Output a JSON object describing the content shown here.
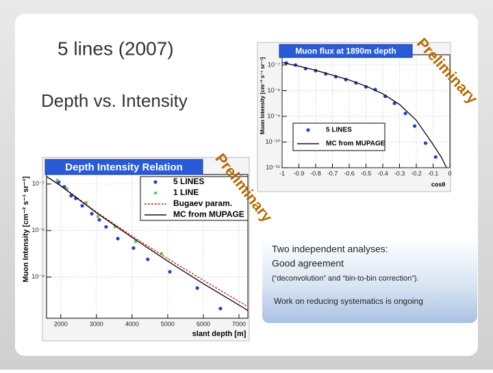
{
  "slide": {
    "title": "5 lines (2007)",
    "subtitle": "Depth vs. Intensity",
    "watermarks": [
      "Preliminary",
      "Preliminary"
    ],
    "textbox": [
      "Two independent analyses:",
      "Good agreement",
      "(“deconvolution” and “bin-to-bin correction”).",
      "Work on reducing systematics is ongoing"
    ]
  },
  "chart_data": [
    {
      "type": "scatter",
      "title": "Depth Intensity Relation",
      "x_label": "slant depth [m]",
      "y_label": "Muon Intensity [cm⁻² s⁻¹ sr⁻¹]",
      "log_y": true,
      "grid": true,
      "legend": "upper right",
      "xlim": [
        1600,
        7250
      ],
      "ylim": [
        1.3e-10,
        1.6e-07
      ],
      "xticks": [
        2000,
        3000,
        4000,
        5000,
        6000,
        7000
      ],
      "yticks": [
        {
          "value": 1e-07,
          "label": "10⁻⁷"
        },
        {
          "value": 1e-08,
          "label": "10⁻⁸"
        },
        {
          "value": 1e-09,
          "label": "10⁻⁹"
        }
      ],
      "series": [
        {
          "name": "5 LINES",
          "color": "#1f3fd6",
          "style": "circle",
          "x": [
            1940,
            2100,
            2290,
            2420,
            2600,
            2870,
            3080,
            3270,
            3600,
            4040,
            4440,
            5060,
            5830,
            6480
          ],
          "values": [
            1.1e-07,
            8.7e-08,
            5.6e-08,
            4.9e-08,
            3.4e-08,
            2.3e-08,
            1.7e-08,
            1.2e-08,
            6.7e-09,
            4.2e-09,
            2.4e-09,
            1.3e-09,
            5.8e-10,
            2.1e-10
          ]
        },
        {
          "name": "1 LINE",
          "color": "#5ec45e",
          "style": "square",
          "x": [
            1900,
            2170,
            2710,
            3040,
            3520,
            4100,
            4830
          ],
          "values": [
            1.2e-07,
            7.9e-08,
            4e-08,
            2e-08,
            1.2e-08,
            5.8e-09,
            3.2e-09
          ]
        },
        {
          "name": "Bugaev param.",
          "color": "#d02020",
          "style": "dashed",
          "x": [
            1600,
            2000,
            3000,
            4000,
            5000,
            6000,
            7000,
            7250
          ],
          "values": [
            1.45e-07,
            9.3e-08,
            2.5e-08,
            7.6e-09,
            2.5e-09,
            8.5e-10,
            3e-10,
            2.3e-10
          ]
        },
        {
          "name": "MC from MUPAGE",
          "color": "#111111",
          "style": "line",
          "x": [
            1600,
            2000,
            3000,
            4000,
            5000,
            6000,
            7000,
            7250
          ],
          "values": [
            1.45e-07,
            9.1e-08,
            2.4e-08,
            7.1e-09,
            2.2e-09,
            7.2e-10,
            2.5e-10,
            1.9e-10
          ]
        }
      ]
    },
    {
      "type": "scatter",
      "title": "Muon flux at 1890m depth",
      "x_label": "cosθ",
      "y_label": "Muon Intensity [cm⁻² s⁻¹ sr⁻¹]",
      "log_y": true,
      "grid": true,
      "legend": "lower left",
      "xlim": [
        -1,
        0
      ],
      "ylim": [
        1e-11,
        2.5e-07
      ],
      "xticks": [
        -1,
        -0.9,
        -0.8,
        -0.7,
        -0.6,
        -0.5,
        -0.4,
        -0.3,
        -0.2,
        -0.1,
        0
      ],
      "yticks": [
        {
          "value": 1e-07,
          "label": "10⁻⁷"
        },
        {
          "value": 1e-08,
          "label": "10⁻⁸"
        },
        {
          "value": 1e-09,
          "label": "10⁻⁹"
        },
        {
          "value": 1e-10,
          "label": "10⁻¹⁰"
        },
        {
          "value": 1e-11,
          "label": "10⁻¹¹"
        }
      ],
      "series": [
        {
          "name": "5 LINES",
          "color": "#1f3fd6",
          "style": "circle",
          "x": [
            -0.975,
            -0.92,
            -0.86,
            -0.8,
            -0.74,
            -0.68,
            -0.62,
            -0.56,
            -0.5,
            -0.445,
            -0.385,
            -0.33,
            -0.265,
            -0.21,
            -0.145,
            -0.085
          ],
          "values": [
            1.2e-07,
            1e-07,
            7.2e-08,
            6e-08,
            4.5e-08,
            3.5e-08,
            2.7e-08,
            2e-08,
            1.4e-08,
            1.1e-08,
            6e-09,
            3.2e-09,
            1.3e-09,
            4.2e-10,
            9e-11,
            2.6e-11
          ]
        },
        {
          "name": "MC from MUPAGE",
          "color": "#111111",
          "style": "line",
          "x": [
            -1,
            -0.9,
            -0.8,
            -0.7,
            -0.6,
            -0.5,
            -0.4,
            -0.3,
            -0.2,
            -0.1,
            -0.05,
            -0.02
          ],
          "values": [
            1.25e-07,
            9e-08,
            6.2e-08,
            4e-08,
            2.6e-08,
            1.5e-08,
            7.5e-09,
            2.9e-09,
            7e-10,
            8e-11,
            2.5e-11,
            1e-11
          ]
        }
      ]
    }
  ]
}
